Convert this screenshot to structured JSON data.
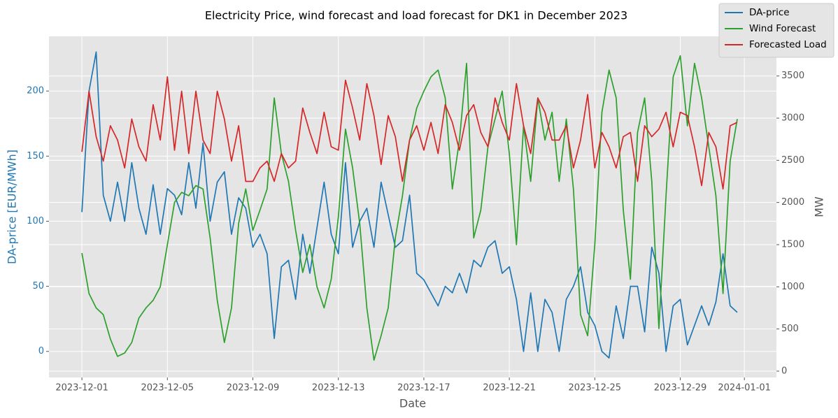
{
  "chart_data": {
    "type": "line",
    "title": "Electricity Price, wind forecast and load forecast for DK1 in December 2023",
    "xlabel": "Date",
    "ylabel": "DA-price [EUR/MWh]",
    "y2label": "MW",
    "x": [
      "2023-12-01 00:00",
      "2023-12-01 08:00",
      "2023-12-01 16:00",
      "2023-12-02 00:00",
      "2023-12-02 08:00",
      "2023-12-02 16:00",
      "2023-12-03 00:00",
      "2023-12-03 08:00",
      "2023-12-03 16:00",
      "2023-12-04 00:00",
      "2023-12-04 08:00",
      "2023-12-04 16:00",
      "2023-12-05 00:00",
      "2023-12-05 08:00",
      "2023-12-05 16:00",
      "2023-12-06 00:00",
      "2023-12-06 08:00",
      "2023-12-06 16:00",
      "2023-12-07 00:00",
      "2023-12-07 08:00",
      "2023-12-07 16:00",
      "2023-12-08 00:00",
      "2023-12-08 08:00",
      "2023-12-08 16:00",
      "2023-12-09 00:00",
      "2023-12-09 08:00",
      "2023-12-09 16:00",
      "2023-12-10 00:00",
      "2023-12-10 08:00",
      "2023-12-10 16:00",
      "2023-12-11 00:00",
      "2023-12-11 08:00",
      "2023-12-11 16:00",
      "2023-12-12 00:00",
      "2023-12-12 08:00",
      "2023-12-12 16:00",
      "2023-12-13 00:00",
      "2023-12-13 08:00",
      "2023-12-13 16:00",
      "2023-12-14 00:00",
      "2023-12-14 08:00",
      "2023-12-14 16:00",
      "2023-12-15 00:00",
      "2023-12-15 08:00",
      "2023-12-15 16:00",
      "2023-12-16 00:00",
      "2023-12-16 08:00",
      "2023-12-16 16:00",
      "2023-12-17 00:00",
      "2023-12-17 08:00",
      "2023-12-17 16:00",
      "2023-12-18 00:00",
      "2023-12-18 08:00",
      "2023-12-18 16:00",
      "2023-12-19 00:00",
      "2023-12-19 08:00",
      "2023-12-19 16:00",
      "2023-12-20 00:00",
      "2023-12-20 08:00",
      "2023-12-20 16:00",
      "2023-12-21 00:00",
      "2023-12-21 08:00",
      "2023-12-21 16:00",
      "2023-12-22 00:00",
      "2023-12-22 08:00",
      "2023-12-22 16:00",
      "2023-12-23 00:00",
      "2023-12-23 08:00",
      "2023-12-23 16:00",
      "2023-12-24 00:00",
      "2023-12-24 08:00",
      "2023-12-24 16:00",
      "2023-12-25 00:00",
      "2023-12-25 08:00",
      "2023-12-25 16:00",
      "2023-12-26 00:00",
      "2023-12-26 08:00",
      "2023-12-26 16:00",
      "2023-12-27 00:00",
      "2023-12-27 08:00",
      "2023-12-27 16:00",
      "2023-12-28 00:00",
      "2023-12-28 08:00",
      "2023-12-28 16:00",
      "2023-12-29 00:00",
      "2023-12-29 08:00",
      "2023-12-29 16:00",
      "2023-12-30 00:00",
      "2023-12-30 08:00",
      "2023-12-30 16:00",
      "2023-12-31 00:00",
      "2023-12-31 08:00",
      "2023-12-31 16:00"
    ],
    "series": [
      {
        "name": "DA-price",
        "color": "#1f77b4",
        "axis": "y",
        "values": [
          107,
          200,
          230,
          120,
          100,
          130,
          100,
          145,
          110,
          90,
          128,
          90,
          125,
          120,
          105,
          145,
          110,
          160,
          100,
          130,
          138,
          90,
          118,
          110,
          80,
          90,
          75,
          10,
          65,
          70,
          40,
          90,
          60,
          95,
          130,
          90,
          75,
          145,
          80,
          100,
          110,
          80,
          130,
          105,
          80,
          85,
          120,
          60,
          55,
          45,
          35,
          50,
          45,
          60,
          45,
          70,
          65,
          80,
          85,
          60,
          65,
          40,
          0,
          45,
          0,
          40,
          30,
          0,
          40,
          50,
          65,
          30,
          20,
          0,
          -5,
          35,
          10,
          50,
          50,
          15,
          80,
          60,
          0,
          35,
          40,
          5,
          20,
          35,
          20,
          38,
          75,
          35,
          30
        ]
      },
      {
        "name": "Wind Forecast",
        "color": "#2ca02c",
        "axis": "y2",
        "values": [
          1400,
          920,
          750,
          670,
          380,
          175,
          215,
          340,
          630,
          750,
          840,
          1000,
          1500,
          2000,
          2120,
          2080,
          2200,
          2160,
          1580,
          840,
          340,
          750,
          1750,
          2160,
          1670,
          1910,
          2160,
          3240,
          2580,
          2250,
          1670,
          1170,
          1500,
          1000,
          750,
          1090,
          1830,
          2870,
          2410,
          1750,
          750,
          130,
          420,
          750,
          1580,
          2080,
          2740,
          3120,
          3320,
          3490,
          3570,
          3240,
          2160,
          2740,
          3650,
          1580,
          1910,
          2660,
          2990,
          3320,
          2580,
          1500,
          2910,
          2250,
          3240,
          2740,
          3070,
          2250,
          2990,
          2160,
          670,
          420,
          1500,
          3070,
          3570,
          3240,
          1910,
          1090,
          2830,
          3240,
          2250,
          505,
          2080,
          3490,
          3740,
          2910,
          3650,
          3240,
          2660,
          2080,
          920,
          2490,
          2990
        ]
      },
      {
        "name": "Forecasted Load",
        "color": "#d62728",
        "axis": "y2",
        "values": [
          2600,
          3320,
          2780,
          2490,
          2910,
          2740,
          2410,
          2990,
          2660,
          2490,
          3160,
          2740,
          3490,
          2620,
          3320,
          2580,
          3320,
          2740,
          2580,
          3320,
          2990,
          2490,
          2910,
          2250,
          2250,
          2410,
          2490,
          2250,
          2580,
          2410,
          2490,
          3120,
          2830,
          2580,
          3070,
          2660,
          2620,
          3450,
          3120,
          2740,
          3410,
          3030,
          2450,
          3030,
          2780,
          2250,
          2740,
          2910,
          2620,
          2950,
          2580,
          3160,
          2950,
          2620,
          3030,
          3160,
          2830,
          2660,
          3240,
          2950,
          2740,
          3410,
          2910,
          2580,
          3240,
          3070,
          2740,
          2740,
          2910,
          2410,
          2740,
          3280,
          2410,
          2830,
          2660,
          2410,
          2780,
          2830,
          2250,
          2910,
          2780,
          2870,
          3070,
          2660,
          3070,
          3030,
          2660,
          2200,
          2830,
          2660,
          2160,
          2910,
          2950
        ]
      }
    ],
    "xlim": [
      "2023-11-29 11:00",
      "2024-01-02 12:00"
    ],
    "xticks": [
      "2023-12-01",
      "2023-12-05",
      "2023-12-09",
      "2023-12-13",
      "2023-12-17",
      "2023-12-21",
      "2023-12-25",
      "2023-12-29",
      "2024-01-01"
    ],
    "ylim": [
      -20,
      242
    ],
    "yticks": [
      0,
      50,
      100,
      150,
      200
    ],
    "y2lim": [
      -75,
      3970
    ],
    "y2ticks": [
      0,
      500,
      1000,
      1500,
      2000,
      2500,
      3000,
      3500
    ],
    "grid": true,
    "legend": "upper right"
  }
}
